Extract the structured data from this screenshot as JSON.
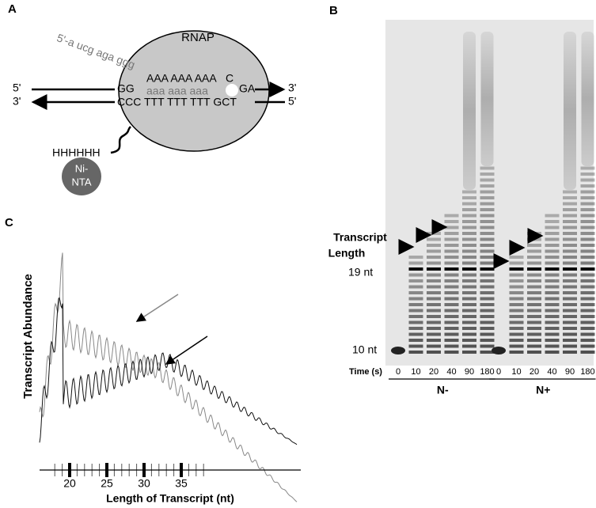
{
  "panels": {
    "a": "A",
    "b": "B",
    "c": "C"
  },
  "diagram": {
    "enzyme": "RNAP",
    "rna": "5'-a ucg aga ggg",
    "top_left_end": "5'",
    "top_right_end": "3'",
    "bottom_left_end": "3'",
    "bottom_right_end": "5'",
    "top_left_seq": "GG",
    "top_middle_seq": "AAA AAA AAA",
    "top_c": "C",
    "top_right_seq": "GA",
    "rna_seq": "aaa aaa aaa",
    "bottom_seq": "CCC TTT TTT TTT GCT",
    "tag": "HHHHHH",
    "bead": [
      "Ni-",
      "NTA"
    ]
  },
  "gel": {
    "length_label": [
      "Transcript",
      "Length"
    ],
    "markers": [
      "19 nt",
      "10 nt"
    ],
    "time_label": "Time (s)",
    "groups": [
      {
        "name": "N-",
        "times": [
          0,
          10,
          20,
          40,
          90,
          180
        ]
      },
      {
        "name": "N+",
        "times": [
          0,
          10,
          20,
          40,
          90,
          180
        ]
      }
    ]
  },
  "trace": {
    "y_label": "Transcript Abundance",
    "x_label": "Length of Transcript (nt)",
    "xticks": [
      20,
      25,
      30,
      35
    ]
  }
}
